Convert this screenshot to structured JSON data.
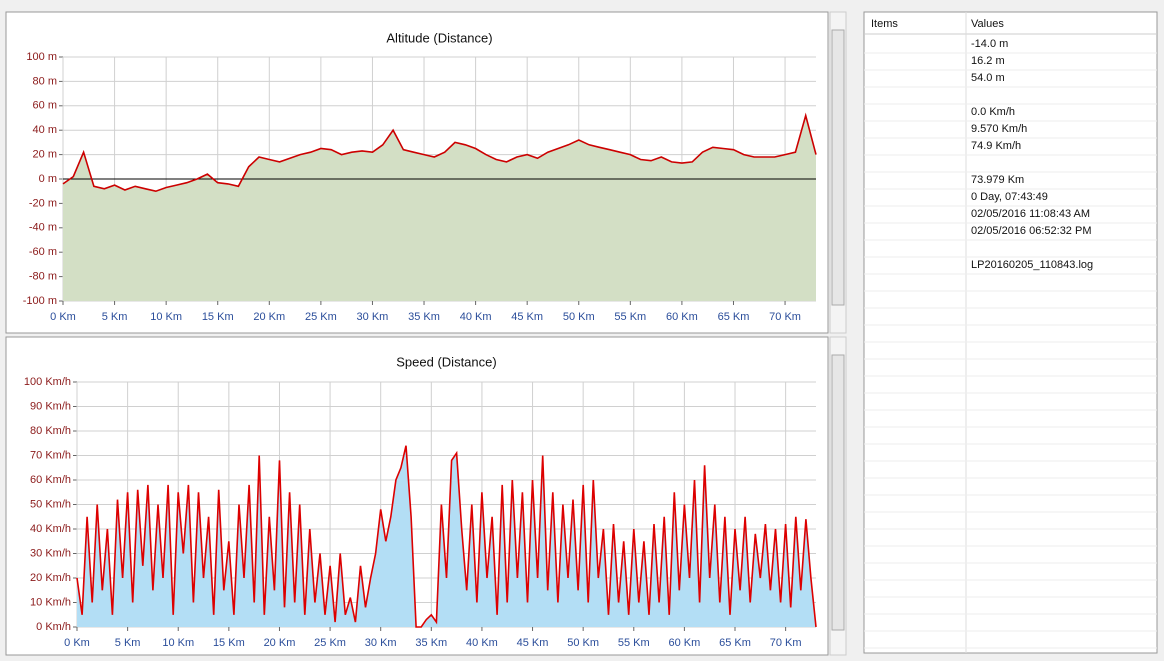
{
  "chart_data": [
    {
      "type": "area",
      "title": "Altitude (Distance)",
      "color": "#cc0000",
      "fill": "#d3dfc5",
      "grid": true,
      "zero_line": true,
      "x": [
        0,
        1,
        2,
        3,
        4,
        5,
        6,
        7,
        8,
        9,
        10,
        11,
        12,
        13,
        14,
        15,
        16,
        17,
        18,
        19,
        20,
        21,
        22,
        23,
        24,
        25,
        26,
        27,
        28,
        29,
        30,
        31,
        32,
        33,
        34,
        35,
        36,
        37,
        38,
        39,
        40,
        41,
        42,
        43,
        44,
        45,
        46,
        47,
        48,
        49,
        50,
        51,
        52,
        53,
        54,
        55,
        56,
        57,
        58,
        59,
        60,
        61,
        62,
        63,
        64,
        65,
        66,
        67,
        68,
        69,
        70,
        71,
        72,
        73
      ],
      "values": [
        -4,
        2,
        22,
        -6,
        -8,
        -5,
        -9,
        -6,
        -8,
        -10,
        -7,
        -5,
        -3,
        0,
        4,
        -3,
        -4,
        -6,
        10,
        18,
        16,
        14,
        17,
        20,
        22,
        25,
        24,
        20,
        22,
        23,
        22,
        28,
        40,
        24,
        22,
        20,
        18,
        22,
        30,
        28,
        25,
        20,
        16,
        14,
        18,
        20,
        17,
        22,
        25,
        28,
        32,
        28,
        26,
        24,
        22,
        20,
        16,
        15,
        18,
        14,
        13,
        14,
        22,
        26,
        25,
        24,
        20,
        18,
        18,
        18,
        20,
        22,
        52,
        20
      ],
      "xlim": [
        0,
        73
      ],
      "xticks": [
        {
          "value": 0,
          "label": "0 Km"
        },
        {
          "value": 5,
          "label": "5 Km"
        },
        {
          "value": 10,
          "label": "10 Km"
        },
        {
          "value": 15,
          "label": "15 Km"
        },
        {
          "value": 20,
          "label": "20 Km"
        },
        {
          "value": 25,
          "label": "25 Km"
        },
        {
          "value": 30,
          "label": "30 Km"
        },
        {
          "value": 35,
          "label": "35 Km"
        },
        {
          "value": 40,
          "label": "40 Km"
        },
        {
          "value": 45,
          "label": "45 Km"
        },
        {
          "value": 50,
          "label": "50 Km"
        },
        {
          "value": 55,
          "label": "55 Km"
        },
        {
          "value": 60,
          "label": "60 Km"
        },
        {
          "value": 65,
          "label": "65 Km"
        },
        {
          "value": 70,
          "label": "70 Km"
        }
      ],
      "ylim": [
        -100,
        100
      ],
      "yticks": [
        {
          "value": 100,
          "label": "100 m"
        },
        {
          "value": 80,
          "label": "80 m"
        },
        {
          "value": 60,
          "label": "60 m"
        },
        {
          "value": 40,
          "label": "40 m"
        },
        {
          "value": 20,
          "label": "20 m"
        },
        {
          "value": 0,
          "label": "0 m"
        },
        {
          "value": -20,
          "label": "-20 m"
        },
        {
          "value": -40,
          "label": "-40 m"
        },
        {
          "value": -60,
          "label": "-60 m"
        },
        {
          "value": -80,
          "label": "-80 m"
        },
        {
          "value": -100,
          "label": "-100 m"
        }
      ]
    },
    {
      "type": "area",
      "title": "Speed (Distance)",
      "color": "#dd0000",
      "fill": "#b3def5",
      "grid": true,
      "zero_line": false,
      "x": [
        0,
        0.5,
        1,
        1.5,
        2,
        2.5,
        3,
        3.5,
        4,
        4.5,
        5,
        5.5,
        6,
        6.5,
        7,
        7.5,
        8,
        8.5,
        9,
        9.5,
        10,
        10.5,
        11,
        11.5,
        12,
        12.5,
        13,
        13.5,
        14,
        14.5,
        15,
        15.5,
        16,
        16.5,
        17,
        17.5,
        18,
        18.5,
        19,
        19.5,
        20,
        20.5,
        21,
        21.5,
        22,
        22.5,
        23,
        23.5,
        24,
        24.5,
        25,
        25.5,
        26,
        26.5,
        27,
        27.5,
        28,
        28.5,
        29,
        29.5,
        30,
        30.5,
        31,
        31.5,
        32,
        32.5,
        33,
        33.5,
        34,
        34.5,
        35,
        35.5,
        36,
        36.5,
        37,
        37.5,
        38,
        38.5,
        39,
        39.5,
        40,
        40.5,
        41,
        41.5,
        42,
        42.5,
        43,
        43.5,
        44,
        44.5,
        45,
        45.5,
        46,
        46.5,
        47,
        47.5,
        48,
        48.5,
        49,
        49.5,
        50,
        50.5,
        51,
        51.5,
        52,
        52.5,
        53,
        53.5,
        54,
        54.5,
        55,
        55.5,
        56,
        56.5,
        57,
        57.5,
        58,
        58.5,
        59,
        59.5,
        60,
        60.5,
        61,
        61.5,
        62,
        62.5,
        63,
        63.5,
        64,
        64.5,
        65,
        65.5,
        66,
        66.5,
        67,
        67.5,
        68,
        68.5,
        69,
        69.5,
        70,
        70.5,
        71,
        71.5,
        72,
        72.5,
        73
      ],
      "values": [
        20,
        5,
        45,
        10,
        50,
        15,
        40,
        5,
        52,
        20,
        55,
        10,
        56,
        25,
        58,
        15,
        50,
        20,
        58,
        5,
        55,
        30,
        58,
        10,
        55,
        20,
        45,
        5,
        56,
        15,
        35,
        5,
        50,
        20,
        58,
        10,
        70,
        5,
        45,
        15,
        68,
        8,
        55,
        10,
        50,
        5,
        40,
        10,
        30,
        5,
        25,
        2,
        30,
        5,
        12,
        2,
        25,
        8,
        20,
        30,
        48,
        35,
        45,
        60,
        65,
        74,
        45,
        0,
        0,
        3,
        5,
        2,
        50,
        20,
        68,
        71,
        40,
        15,
        50,
        10,
        55,
        20,
        45,
        5,
        58,
        10,
        60,
        20,
        55,
        10,
        60,
        20,
        70,
        15,
        55,
        10,
        50,
        20,
        52,
        15,
        58,
        10,
        60,
        20,
        40,
        5,
        42,
        10,
        35,
        5,
        40,
        10,
        35,
        5,
        42,
        10,
        45,
        5,
        55,
        15,
        50,
        20,
        60,
        10,
        66,
        20,
        50,
        10,
        45,
        5,
        40,
        15,
        45,
        10,
        38,
        20,
        42,
        15,
        40,
        10,
        42,
        8,
        45,
        15,
        44,
        20,
        0
      ],
      "xlim": [
        0,
        73
      ],
      "xticks": [
        {
          "value": 0,
          "label": "0 Km"
        },
        {
          "value": 5,
          "label": "5 Km"
        },
        {
          "value": 10,
          "label": "10 Km"
        },
        {
          "value": 15,
          "label": "15 Km"
        },
        {
          "value": 20,
          "label": "20 Km"
        },
        {
          "value": 25,
          "label": "25 Km"
        },
        {
          "value": 30,
          "label": "30 Km"
        },
        {
          "value": 35,
          "label": "35 Km"
        },
        {
          "value": 40,
          "label": "40 Km"
        },
        {
          "value": 45,
          "label": "45 Km"
        },
        {
          "value": 50,
          "label": "50 Km"
        },
        {
          "value": 55,
          "label": "55 Km"
        },
        {
          "value": 60,
          "label": "60 Km"
        },
        {
          "value": 65,
          "label": "65 Km"
        },
        {
          "value": 70,
          "label": "70 Km"
        }
      ],
      "ylim": [
        0,
        100
      ],
      "yticks": [
        {
          "value": 100,
          "label": "100 Km/h"
        },
        {
          "value": 90,
          "label": "90 Km/h"
        },
        {
          "value": 80,
          "label": "80 Km/h"
        },
        {
          "value": 70,
          "label": "70 Km/h"
        },
        {
          "value": 60,
          "label": "60 Km/h"
        },
        {
          "value": 50,
          "label": "50 Km/h"
        },
        {
          "value": 40,
          "label": "40 Km/h"
        },
        {
          "value": 30,
          "label": "30 Km/h"
        },
        {
          "value": 20,
          "label": "20 Km/h"
        },
        {
          "value": 10,
          "label": "10 Km/h"
        },
        {
          "value": 0,
          "label": "0 Km/h"
        }
      ]
    }
  ],
  "table": {
    "columns": [
      "Items",
      "Values"
    ],
    "groups": [
      [
        "-14.0 m",
        "16.2 m",
        "54.0 m"
      ],
      [
        "0.0 Km/h",
        "9.570 Km/h",
        "74.9 Km/h"
      ],
      [
        "73.979 Km",
        "0 Day, 07:43:49",
        "02/05/2016 11:08:43 AM",
        "02/05/2016 06:52:32 PM"
      ],
      [
        "LP20160205_110843.log"
      ]
    ]
  }
}
